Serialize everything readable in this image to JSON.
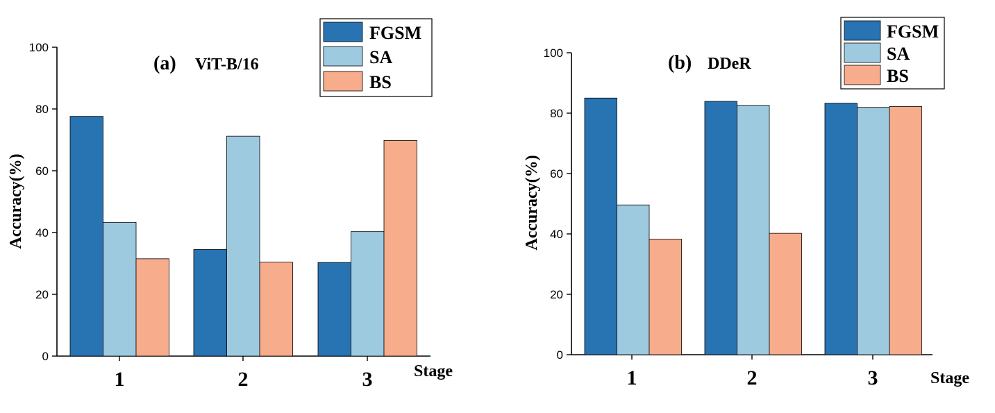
{
  "chart_data": [
    {
      "type": "bar",
      "panel": "(a)",
      "title": "ViT-B/16",
      "xlabel": "Stage",
      "ylabel": "Accuracy(%)",
      "categories": [
        "1",
        "2",
        "3"
      ],
      "ylim": [
        0,
        100
      ],
      "yticks": [
        "0",
        "20",
        "40",
        "60",
        "80",
        "100"
      ],
      "legend_position": "top-right",
      "series": [
        {
          "name": "FGSM",
          "color": "#2873B2",
          "values": [
            77.6,
            34.5,
            30.3
          ]
        },
        {
          "name": "SA",
          "color": "#9ECAE0",
          "values": [
            43.3,
            71.2,
            40.3
          ]
        },
        {
          "name": "BS",
          "color": "#F7AC8C",
          "values": [
            31.5,
            30.4,
            69.8
          ]
        }
      ]
    },
    {
      "type": "bar",
      "panel": "(b)",
      "title": "DDeR",
      "xlabel": "Stage",
      "ylabel": "Accuracy(%)",
      "categories": [
        "1",
        "2",
        "3"
      ],
      "ylim": [
        0,
        100
      ],
      "yticks": [
        "0",
        "20",
        "40",
        "60",
        "80",
        "100"
      ],
      "legend_position": "top-right",
      "series": [
        {
          "name": "FGSM",
          "color": "#2873B2",
          "values": [
            85.0,
            83.9,
            83.3
          ]
        },
        {
          "name": "SA",
          "color": "#9ECAE0",
          "values": [
            49.6,
            82.6,
            81.9
          ]
        },
        {
          "name": "BS",
          "color": "#F7AC8C",
          "values": [
            38.3,
            40.2,
            82.2
          ]
        }
      ]
    }
  ]
}
